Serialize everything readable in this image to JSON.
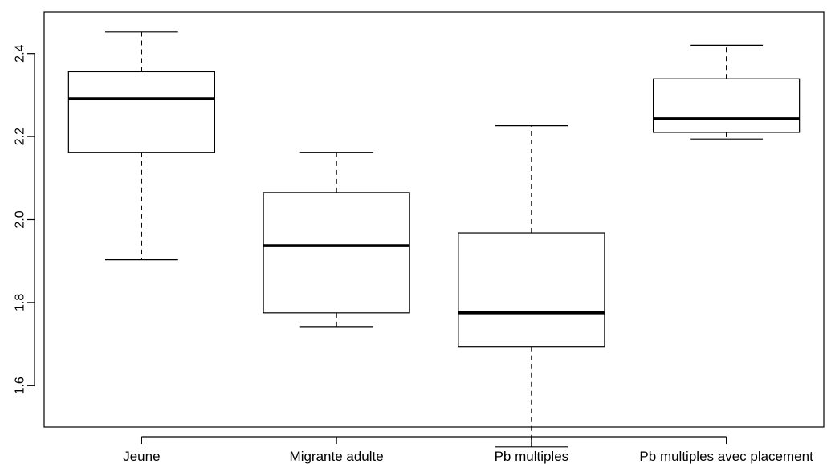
{
  "chart_data": {
    "type": "boxplot",
    "title": "",
    "xlabel": "",
    "ylabel": "",
    "ylim": [
      1.5,
      2.5
    ],
    "yticks": [
      1.6,
      1.8,
      2.0,
      2.2,
      2.4
    ],
    "ytick_labels": [
      "1.6",
      "1.8",
      "2.0",
      "2.2",
      "2.4"
    ],
    "grid": false,
    "categories": [
      "Jeune",
      "Migrante adulte",
      "Pb multiples",
      "Pb multiples avec placement"
    ],
    "boxes": [
      {
        "category": "Jeune",
        "whisker_low": 1.903,
        "q1": 2.162,
        "median": 2.291,
        "q3": 2.356,
        "whisker_high": 2.452
      },
      {
        "category": "Migrante adulte",
        "whisker_low": 1.742,
        "q1": 1.775,
        "median": 1.937,
        "q3": 2.065,
        "whisker_high": 2.162
      },
      {
        "category": "Pb multiples",
        "whisker_low": 1.452,
        "q1": 1.694,
        "median": 1.775,
        "q3": 1.968,
        "whisker_high": 2.226
      },
      {
        "category": "Pb multiples avec placement",
        "whisker_low": 2.194,
        "q1": 2.21,
        "median": 2.243,
        "q3": 2.339,
        "whisker_high": 2.42
      }
    ]
  }
}
